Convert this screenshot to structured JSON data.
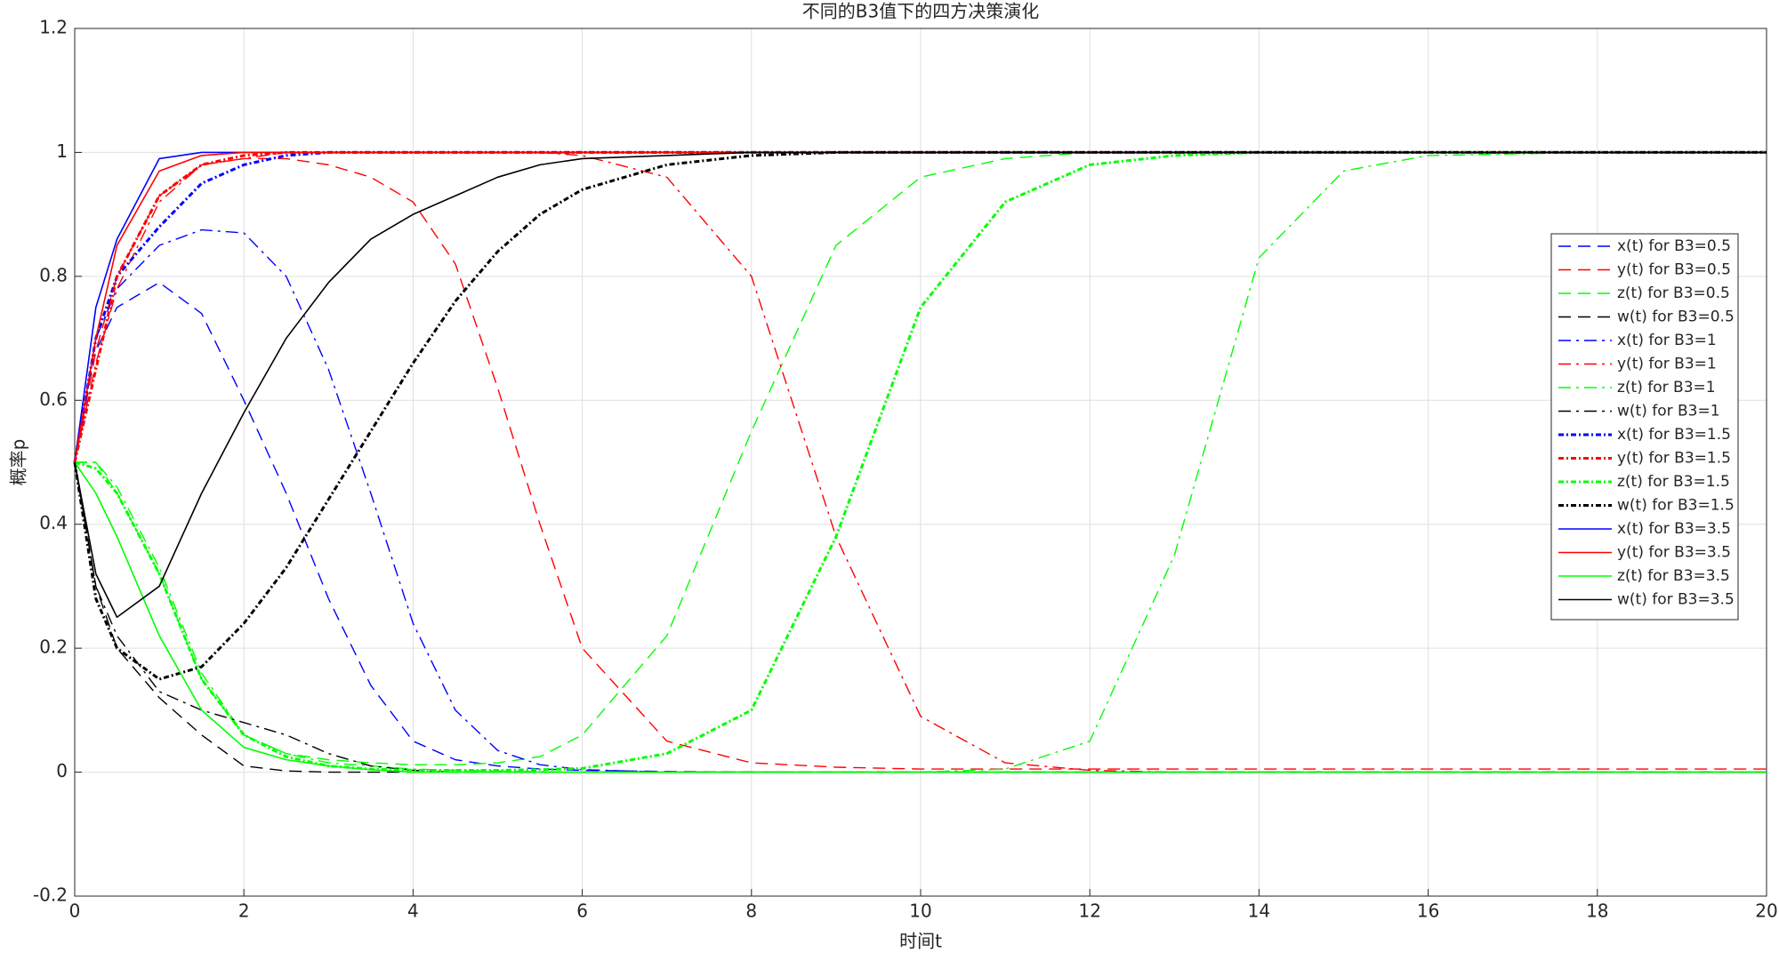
{
  "chart_data": {
    "type": "line",
    "title": "不同的B3值下的四方决策演化",
    "xlabel": "时间t",
    "ylabel": "概率p",
    "x": [
      0,
      0.25,
      0.5,
      1,
      1.5,
      2,
      2.5,
      3,
      3.5,
      4,
      4.5,
      5,
      5.5,
      6,
      7,
      8,
      9,
      10,
      11,
      12,
      13,
      14,
      15,
      16,
      18,
      20
    ],
    "xlim": [
      0,
      20
    ],
    "xticks": [
      0,
      2,
      4,
      6,
      8,
      10,
      12,
      14,
      16,
      18,
      20
    ],
    "ylim": [
      -0.2,
      1.2
    ],
    "yticks": [
      -0.2,
      0,
      0.2,
      0.4,
      0.6,
      0.8,
      1,
      1.2
    ],
    "grid": true,
    "legend": "right",
    "series": [
      {
        "name": "x(t) for B3=0.5",
        "color": "#0000ff",
        "linestyle": "dashed",
        "values": [
          0.5,
          0.68,
          0.75,
          0.79,
          0.74,
          0.6,
          0.45,
          0.28,
          0.14,
          0.05,
          0.02,
          0.01,
          0.005,
          0.003,
          0.001,
          0,
          0,
          0,
          0,
          0,
          0,
          0,
          0,
          0,
          0,
          0
        ]
      },
      {
        "name": "y(t) for B3=0.5",
        "color": "#ff0000",
        "linestyle": "dashed",
        "values": [
          0.5,
          0.68,
          0.8,
          0.93,
          0.98,
          0.99,
          0.99,
          0.98,
          0.96,
          0.92,
          0.82,
          0.62,
          0.4,
          0.2,
          0.05,
          0.015,
          0.008,
          0.005,
          0.005,
          0.005,
          0.005,
          0.005,
          0.005,
          0.005,
          0.005,
          0.005
        ]
      },
      {
        "name": "z(t) for B3=0.5",
        "color": "#00ff00",
        "linestyle": "dashed",
        "values": [
          0.5,
          0.5,
          0.45,
          0.32,
          0.15,
          0.06,
          0.03,
          0.02,
          0.015,
          0.012,
          0.012,
          0.015,
          0.025,
          0.06,
          0.22,
          0.55,
          0.85,
          0.96,
          0.99,
          1,
          1,
          1,
          1,
          1,
          1,
          1
        ]
      },
      {
        "name": "w(t) for B3=0.5",
        "color": "#000000",
        "linestyle": "dashed",
        "values": [
          0.5,
          0.3,
          0.2,
          0.12,
          0.06,
          0.01,
          0.002,
          0,
          0,
          0,
          0,
          0,
          0,
          0,
          0,
          0,
          0,
          0,
          0,
          0,
          0,
          0,
          0,
          0,
          0,
          0
        ]
      },
      {
        "name": "x(t) for B3=1",
        "color": "#0000ff",
        "linestyle": "dashdot",
        "values": [
          0.5,
          0.7,
          0.78,
          0.85,
          0.875,
          0.87,
          0.8,
          0.65,
          0.45,
          0.24,
          0.1,
          0.035,
          0.012,
          0.004,
          0,
          0,
          0,
          0,
          0,
          0,
          0,
          0,
          0,
          0,
          0,
          0
        ]
      },
      {
        "name": "y(t) for B3=1",
        "color": "#ff0000",
        "linestyle": "dashdot",
        "values": [
          0.5,
          0.66,
          0.78,
          0.92,
          0.98,
          0.99,
          1,
          1,
          1,
          1,
          1,
          1,
          1,
          0.995,
          0.96,
          0.8,
          0.38,
          0.09,
          0.015,
          0.003,
          0,
          0,
          0,
          0,
          0,
          0
        ]
      },
      {
        "name": "z(t) for B3=1",
        "color": "#00ff00",
        "linestyle": "dashdot",
        "values": [
          0.5,
          0.5,
          0.46,
          0.33,
          0.16,
          0.06,
          0.03,
          0.015,
          0.01,
          0.005,
          0.003,
          0.002,
          0.001,
          0,
          0,
          0,
          0,
          0,
          0.005,
          0.05,
          0.35,
          0.83,
          0.97,
          0.995,
          1,
          1
        ]
      },
      {
        "name": "w(t) for B3=1",
        "color": "#000000",
        "linestyle": "dashdot",
        "values": [
          0.5,
          0.3,
          0.22,
          0.13,
          0.1,
          0.08,
          0.06,
          0.03,
          0.01,
          0.003,
          0,
          0,
          0,
          0,
          0,
          0,
          0,
          0,
          0,
          0,
          0,
          0,
          0,
          0,
          0,
          0
        ]
      },
      {
        "name": "x(t) for B3=1.5",
        "color": "#0000ff",
        "linestyle": "dotted",
        "values": [
          0.5,
          0.7,
          0.8,
          0.88,
          0.95,
          0.98,
          0.995,
          1,
          1,
          1,
          1,
          1,
          1,
          1,
          1,
          1,
          1,
          1,
          1,
          1,
          1,
          1,
          1,
          1,
          1,
          1
        ]
      },
      {
        "name": "y(t) for B3=1.5",
        "color": "#ff0000",
        "linestyle": "dotted",
        "values": [
          0.5,
          0.65,
          0.8,
          0.93,
          0.98,
          0.995,
          1,
          1,
          1,
          1,
          1,
          1,
          1,
          1,
          1,
          1,
          1,
          1,
          1,
          1,
          1,
          1,
          1,
          1,
          1,
          1
        ]
      },
      {
        "name": "z(t) for B3=1.5",
        "color": "#00ff00",
        "linestyle": "dotted",
        "values": [
          0.5,
          0.49,
          0.45,
          0.32,
          0.15,
          0.06,
          0.025,
          0.01,
          0.005,
          0.003,
          0.003,
          0.003,
          0.004,
          0.006,
          0.03,
          0.1,
          0.38,
          0.75,
          0.92,
          0.98,
          0.995,
          1,
          1,
          1,
          1,
          1
        ]
      },
      {
        "name": "w(t) for B3=1.5",
        "color": "#000000",
        "linestyle": "dotted",
        "values": [
          0.5,
          0.28,
          0.2,
          0.15,
          0.17,
          0.24,
          0.33,
          0.44,
          0.55,
          0.66,
          0.76,
          0.84,
          0.9,
          0.94,
          0.98,
          0.995,
          1,
          1,
          1,
          1,
          1,
          1,
          1,
          1,
          1,
          1
        ]
      },
      {
        "name": "x(t) for B3=3.5",
        "color": "#0000ff",
        "linestyle": "solid",
        "values": [
          0.5,
          0.75,
          0.86,
          0.99,
          1,
          1,
          1,
          1,
          1,
          1,
          1,
          1,
          1,
          1,
          1,
          1,
          1,
          1,
          1,
          1,
          1,
          1,
          1,
          1,
          1,
          1
        ]
      },
      {
        "name": "y(t) for B3=3.5",
        "color": "#ff0000",
        "linestyle": "solid",
        "values": [
          0.5,
          0.7,
          0.85,
          0.97,
          0.995,
          1,
          1,
          1,
          1,
          1,
          1,
          1,
          1,
          1,
          1,
          1,
          1,
          1,
          1,
          1,
          1,
          1,
          1,
          1,
          1,
          1
        ]
      },
      {
        "name": "z(t) for B3=3.5",
        "color": "#00ff00",
        "linestyle": "solid",
        "values": [
          0.5,
          0.45,
          0.38,
          0.22,
          0.1,
          0.04,
          0.02,
          0.01,
          0.004,
          0,
          0,
          0,
          0,
          0,
          0,
          0,
          0,
          0,
          0,
          0,
          0,
          0,
          0,
          0,
          0,
          0
        ]
      },
      {
        "name": "w(t) for B3=3.5",
        "color": "#000000",
        "linestyle": "solid",
        "values": [
          0.5,
          0.32,
          0.25,
          0.3,
          0.45,
          0.58,
          0.7,
          0.79,
          0.86,
          0.9,
          0.93,
          0.96,
          0.98,
          0.99,
          0.995,
          1,
          1,
          1,
          1,
          1,
          1,
          1,
          1,
          1,
          1,
          1
        ]
      }
    ]
  }
}
